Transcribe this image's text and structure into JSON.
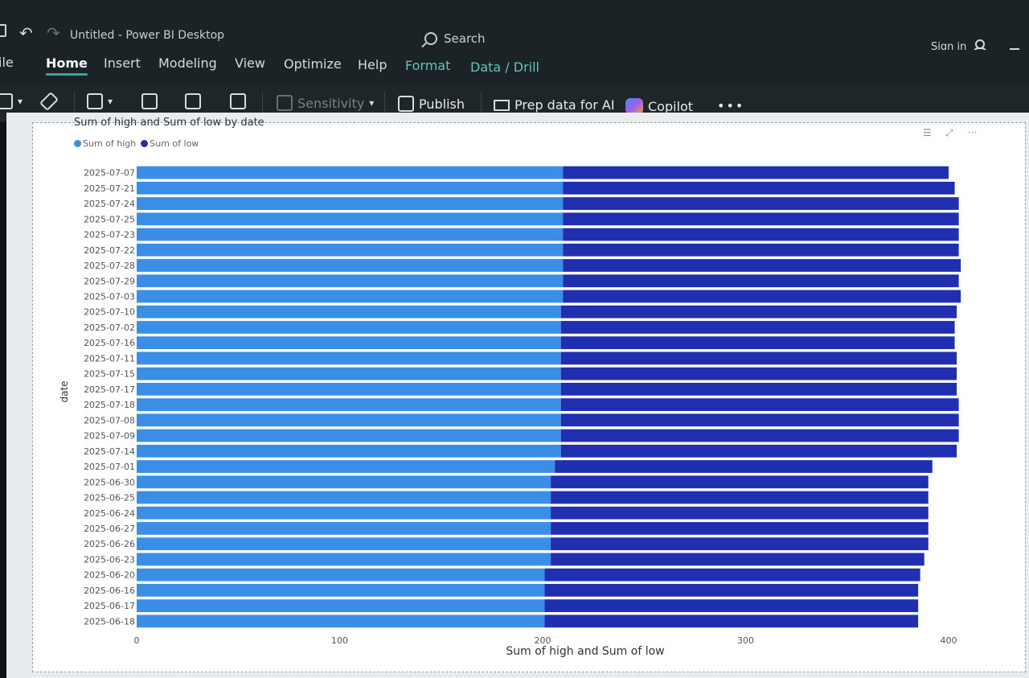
{
  "window": {
    "title": "Untitled - Power BI Desktop",
    "search_placeholder": "Search",
    "sign_in": "Sign in"
  },
  "tabs": [
    {
      "label": "ile",
      "active": false
    },
    {
      "label": "Home",
      "active": true
    },
    {
      "label": "Insert",
      "active": false
    },
    {
      "label": "Modeling",
      "active": false
    },
    {
      "label": "View",
      "active": false
    },
    {
      "label": "Optimize",
      "active": false
    },
    {
      "label": "Help",
      "active": false
    },
    {
      "label": "Format",
      "active": false
    },
    {
      "label": "Data / Drill",
      "active": false
    }
  ],
  "toolbar": {
    "sensitivity": "Sensitivity",
    "publish": "Publish",
    "prep_data": "Prep data for AI",
    "copilot": "Copilot",
    "more": "•••"
  },
  "colors": {
    "high": "#3a8ee6",
    "low": "#1f2fb0",
    "accent_tab": "#3aa3a6",
    "contextual_tab": "#5fc7b8"
  },
  "icons": [
    "save-icon",
    "undo-icon",
    "redo-icon",
    "search-icon",
    "user-icon",
    "filter-icon",
    "focus-mode-icon",
    "more-options-icon"
  ],
  "chart_data": {
    "type": "bar",
    "orientation": "horizontal",
    "stacked": true,
    "title": "Sum of high and Sum of low by date",
    "xlabel": "Sum of high and Sum of low",
    "ylabel": "date",
    "xlim": [
      0,
      400
    ],
    "xticks": [
      0,
      100,
      200,
      300,
      400
    ],
    "legend_position": "top-left",
    "grid": false,
    "categories": [
      "2025-07-07",
      "2025-07-21",
      "2025-07-24",
      "2025-07-25",
      "2025-07-23",
      "2025-07-22",
      "2025-07-28",
      "2025-07-29",
      "2025-07-03",
      "2025-07-10",
      "2025-07-02",
      "2025-07-16",
      "2025-07-11",
      "2025-07-15",
      "2025-07-17",
      "2025-07-18",
      "2025-07-08",
      "2025-07-09",
      "2025-07-14",
      "2025-07-01",
      "2025-06-30",
      "2025-06-25",
      "2025-06-24",
      "2025-06-27",
      "2025-06-26",
      "2025-06-23",
      "2025-06-20",
      "2025-06-16",
      "2025-06-17",
      "2025-06-18"
    ],
    "series": [
      {
        "name": "Sum of high",
        "values": [
          210,
          210,
          210,
          210,
          210,
          210,
          210,
          210,
          210,
          209,
          209,
          209,
          209,
          209,
          209,
          209,
          209,
          209,
          209,
          206,
          204,
          204,
          204,
          204,
          204,
          204,
          201,
          201,
          201,
          201
        ]
      },
      {
        "name": "Sum of low",
        "values": [
          190,
          193,
          195,
          195,
          195,
          195,
          196,
          195,
          196,
          195,
          194,
          194,
          195,
          195,
          195,
          196,
          196,
          196,
          195,
          186,
          186,
          186,
          186,
          186,
          186,
          184,
          185,
          184,
          184,
          184
        ]
      }
    ]
  }
}
